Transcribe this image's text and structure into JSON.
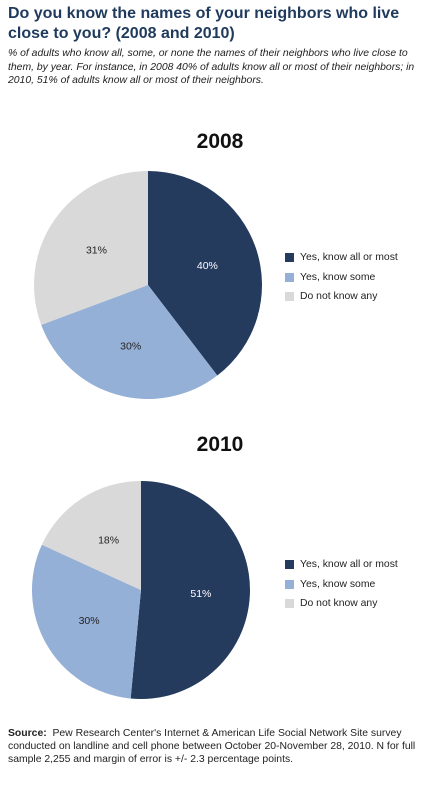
{
  "title": "Do you know the names of your neighbors who live close to you? (2008 and 2010)",
  "subtitle": "% of adults who know all, some, or none the names of their neighbors who live close to them, by year. For instance, in 2008 40% of adults know all or most of their neighbors; in 2010, 51% of adults know all or most of their neighbors.",
  "source": {
    "label": "Source:",
    "text": "Pew Research Center's Internet & American Life Social Network Site survey conducted on landline and cell phone between October 20-November 28, 2010. N for full sample 2,255 and margin of error is +/- 2.3 percentage points."
  },
  "colors": {
    "know_all": "#243b5e",
    "know_some": "#95b0d6",
    "none": "#d9d9d9"
  },
  "chart_data": [
    {
      "type": "pie",
      "title": "2008",
      "legend_position": "right",
      "slices": [
        {
          "name": "Yes, know all or most",
          "value": 40,
          "label": "40%",
          "color": "#243b5e"
        },
        {
          "name": "Yes, know some",
          "value": 30,
          "label": "30%",
          "color": "#95b0d6"
        },
        {
          "name": "Do not know any",
          "value": 31,
          "label": "31%",
          "color": "#d9d9d9"
        }
      ]
    },
    {
      "type": "pie",
      "title": "2010",
      "legend_position": "right",
      "slices": [
        {
          "name": "Yes, know all or most",
          "value": 51,
          "label": "51%",
          "color": "#243b5e"
        },
        {
          "name": "Yes, know some",
          "value": 30,
          "label": "30%",
          "color": "#95b0d6"
        },
        {
          "name": "Do not know any",
          "value": 18,
          "label": "18%",
          "color": "#d9d9d9"
        }
      ]
    }
  ]
}
